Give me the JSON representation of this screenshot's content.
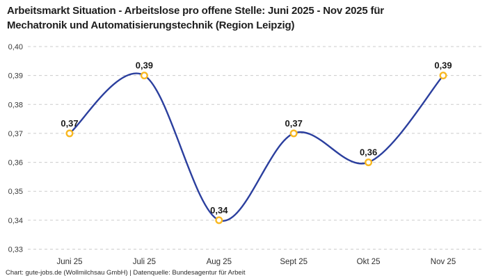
{
  "page": {
    "title_line1": "Arbeitsmarkt Situation - Arbeitslose pro offene Stelle: Juni 2025 - Nov 2025 für",
    "title_line2": "Mechatronik und Automatisierungstechnik (Region Leipzig)",
    "footer": "Chart: gute-jobs.de (Wollmilchsau GmbH) | Datenquelle: Bundesagentur für Arbeit"
  },
  "chart_data": {
    "type": "line",
    "title": "Arbeitsmarkt Situation - Arbeitslose pro offene Stelle: Juni 2025 - Nov 2025 für Mechatronik und Automatisierungstechnik (Region Leipzig)",
    "categories": [
      "Juni 25",
      "Juli 25",
      "Aug 25",
      "Sept 25",
      "Okt 25",
      "Nov 25"
    ],
    "values": [
      0.37,
      0.39,
      0.34,
      0.37,
      0.36,
      0.39
    ],
    "point_labels": [
      "0,37",
      "0,39",
      "0,34",
      "0,37",
      "0,36",
      "0,39"
    ],
    "y_ticks": {
      "values": [
        0.4,
        0.39,
        0.38,
        0.37,
        0.36,
        0.35,
        0.34,
        0.33
      ],
      "labels": [
        "0,40",
        "0,39",
        "0,38",
        "0,37",
        "0,36",
        "0,35",
        "0,34",
        "0,33"
      ]
    },
    "ylim": [
      0.33,
      0.4
    ],
    "xlabel": "",
    "ylabel": "",
    "legend": "none",
    "grid": "horizontal-dashed",
    "curve": "smooth-spline",
    "colors": {
      "line": "#2b3f9e",
      "marker_fill": "#ffffff",
      "marker_stroke": "#f8b822",
      "grid": "#cbcbcb",
      "point_label": "#191919",
      "y_tick_label": "#3a3a3a",
      "x_tick_label": "#303030"
    }
  }
}
